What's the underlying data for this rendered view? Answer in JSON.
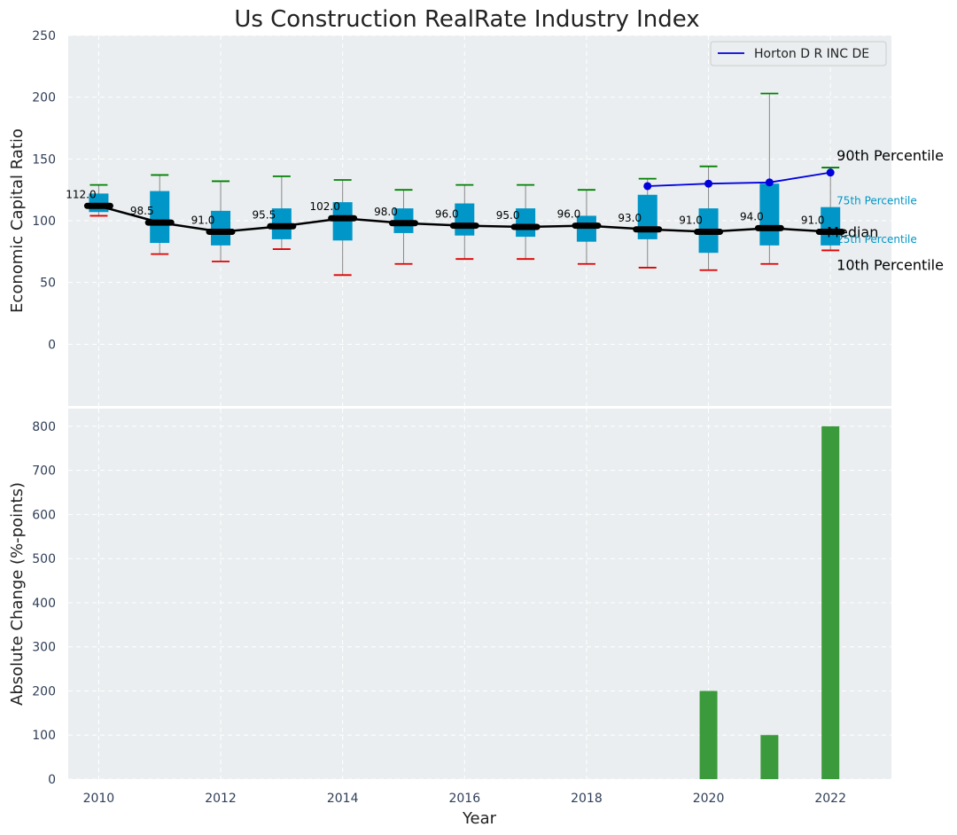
{
  "chart_data": {
    "type": "box",
    "title": "Us Construction RealRate Industry Index",
    "xlabel": "Year",
    "top_panel": {
      "ylabel": "Economic Capital Ratio",
      "ylim": [
        -50,
        250
      ],
      "yticks": [
        0,
        50,
        100,
        150,
        200,
        250
      ],
      "grid": true,
      "legend": {
        "position": "top-right",
        "entries": [
          "Horton D R INC DE"
        ]
      },
      "boxes": [
        {
          "year": 2010,
          "p10": 104,
          "q1": 107,
          "median": 112,
          "q3": 122,
          "p90": 129,
          "label": "112.0"
        },
        {
          "year": 2011,
          "p10": 73,
          "q1": 82,
          "median": 98.5,
          "q3": 124,
          "p90": 137,
          "label": "98.5"
        },
        {
          "year": 2012,
          "p10": 67,
          "q1": 80,
          "median": 91,
          "q3": 108,
          "p90": 132,
          "label": "91.0"
        },
        {
          "year": 2013,
          "p10": 77,
          "q1": 85,
          "median": 95.5,
          "q3": 110,
          "p90": 136,
          "label": "95.5"
        },
        {
          "year": 2014,
          "p10": 56,
          "q1": 84,
          "median": 102,
          "q3": 115,
          "p90": 133,
          "label": "102.0"
        },
        {
          "year": 2015,
          "p10": 65,
          "q1": 90,
          "median": 98,
          "q3": 110,
          "p90": 125,
          "label": "98.0"
        },
        {
          "year": 2016,
          "p10": 69,
          "q1": 88,
          "median": 96,
          "q3": 114,
          "p90": 129,
          "label": "96.0"
        },
        {
          "year": 2017,
          "p10": 69,
          "q1": 87,
          "median": 95,
          "q3": 110,
          "p90": 129,
          "label": "95.0"
        },
        {
          "year": 2018,
          "p10": 65,
          "q1": 83,
          "median": 96,
          "q3": 104,
          "p90": 125,
          "label": "96.0"
        },
        {
          "year": 2019,
          "p10": 62,
          "q1": 85,
          "median": 93,
          "q3": 121,
          "p90": 134,
          "label": "93.0"
        },
        {
          "year": 2020,
          "p10": 60,
          "q1": 74,
          "median": 91,
          "q3": 110,
          "p90": 144,
          "label": "91.0"
        },
        {
          "year": 2021,
          "p10": 65,
          "q1": 80,
          "median": 94,
          "q3": 130,
          "p90": 203,
          "label": "94.0"
        },
        {
          "year": 2022,
          "p10": 76,
          "q1": 80,
          "median": 91,
          "q3": 111,
          "p90": 143,
          "label": "91.0"
        }
      ],
      "series": [
        {
          "name": "Horton D R INC DE",
          "x": [
            2019,
            2020,
            2021,
            2022
          ],
          "values": [
            128,
            130,
            131,
            139
          ]
        }
      ],
      "annotations": {
        "p90": "90th Percentile",
        "p75": "75th Percentile",
        "median": "Median",
        "p25": "25th Percentile",
        "p10": "10th Percentile"
      }
    },
    "bottom_panel": {
      "type": "bar",
      "ylabel": "Absolute Change (%-points)",
      "ylim": [
        0,
        840
      ],
      "yticks": [
        0,
        100,
        200,
        300,
        400,
        500,
        600,
        700,
        800
      ],
      "grid": true,
      "x": [
        2020,
        2021,
        2022
      ],
      "values": [
        200,
        100,
        800
      ]
    },
    "xlim": [
      2009.5,
      2023
    ],
    "xticks": [
      2010,
      2012,
      2014,
      2016,
      2018,
      2020,
      2022
    ],
    "colors": {
      "background": "#eaeef0",
      "box": "#0096c7",
      "whisker_top": "#008000",
      "whisker_bottom": "#e00000",
      "median_line": "#000000",
      "company_line": "#0000dd",
      "bar": "#3b9a3b",
      "tick_text": "#2f3e57",
      "p75_p25_text": "#0096c7"
    }
  }
}
